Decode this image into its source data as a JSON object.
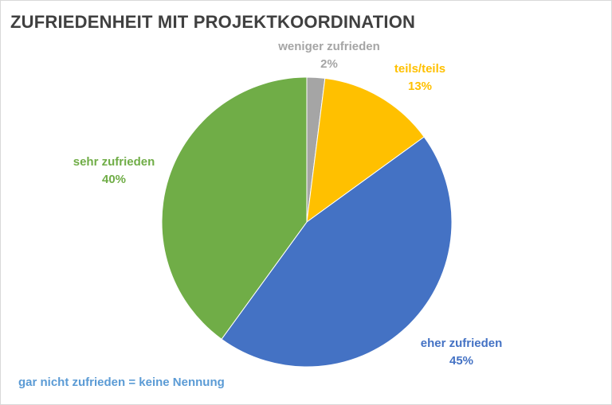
{
  "chart_data": {
    "type": "pie",
    "title": "ZUFRIEDENHEIT MIT PROJEKTKOORDINATION",
    "slices": [
      {
        "name": "weniger zufrieden",
        "value": 2,
        "label": "2%",
        "color": "#a5a5a5"
      },
      {
        "name": "teils/teils",
        "value": 13,
        "label": "13%",
        "color": "#ffc000"
      },
      {
        "name": "eher zufrieden",
        "value": 45,
        "label": "45%",
        "color": "#4472c4"
      },
      {
        "name": "sehr zufrieden",
        "value": 40,
        "label": "40%",
        "color": "#70ad47"
      }
    ],
    "start_angle": "12 o'clock",
    "direction": "clockwise",
    "legend": "none",
    "annotation": "gar nicht zufrieden = keine Nennung"
  }
}
